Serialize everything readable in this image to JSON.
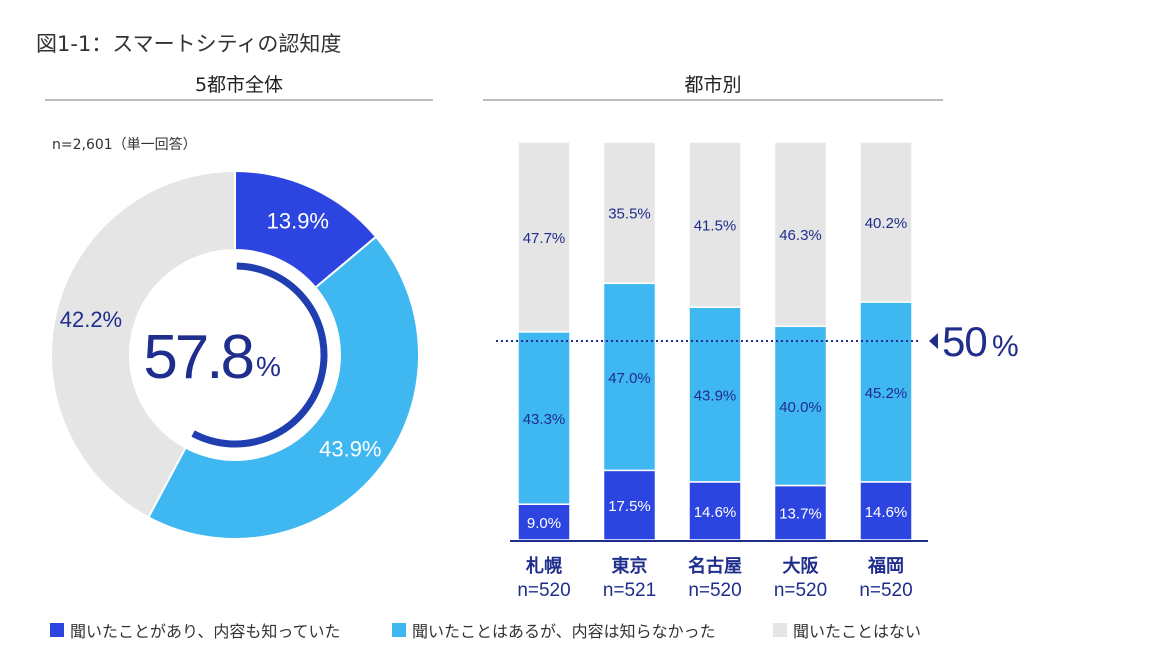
{
  "figure_title": "図1-1：スマートシティの認知度",
  "colors": {
    "aware_and_know": "#2c45e0",
    "heard_only": "#3fb7f1",
    "not_heard": "#e5e5e5",
    "navy": "#1f2d8c",
    "center_arc": "#1f3fb0"
  },
  "chart_data": [
    {
      "type": "pie",
      "title": "5都市全体",
      "note": "n=2,601（単一回答）",
      "categories": [
        "聞いたことがあり、内容も知っていた",
        "聞いたことはあるが、内容は知らなかった",
        "聞いたことはない"
      ],
      "values": [
        13.9,
        43.9,
        42.2
      ],
      "labels": [
        "13.9%",
        "43.9%",
        "42.2%"
      ],
      "center_value": "57.8",
      "center_unit": "%"
    },
    {
      "type": "bar",
      "stacked": true,
      "title": "都市別",
      "categories": [
        "札幌",
        "東京",
        "名古屋",
        "大阪",
        "福岡"
      ],
      "sample_sizes": [
        "n=520",
        "n=521",
        "n=520",
        "n=520",
        "n=520"
      ],
      "series": [
        {
          "name": "聞いたことがあり、内容も知っていた",
          "values": [
            9.0,
            17.5,
            14.6,
            13.7,
            14.6
          ],
          "labels": [
            "9.0%",
            "17.5%",
            "14.6%",
            "13.7%",
            "14.6%"
          ]
        },
        {
          "name": "聞いたことはあるが、内容は知らなかった",
          "values": [
            43.3,
            47.0,
            43.9,
            40.0,
            45.2
          ],
          "labels": [
            "43.3%",
            "47.0%",
            "43.9%",
            "40.0%",
            "45.2%"
          ]
        },
        {
          "name": "聞いたことはない",
          "values": [
            47.7,
            35.5,
            41.5,
            46.3,
            40.2
          ],
          "labels": [
            "47.7%",
            "35.5%",
            "41.5%",
            "46.3%",
            "40.2%"
          ]
        }
      ],
      "ylim": [
        0,
        100
      ],
      "reference_line": {
        "value": 50,
        "label_value": "50",
        "label_unit": "%"
      }
    }
  ],
  "legend": [
    {
      "label": "聞いたことがあり、内容も知っていた"
    },
    {
      "label": "聞いたことはあるが、内容は知らなかった"
    },
    {
      "label": "聞いたことはない"
    }
  ]
}
